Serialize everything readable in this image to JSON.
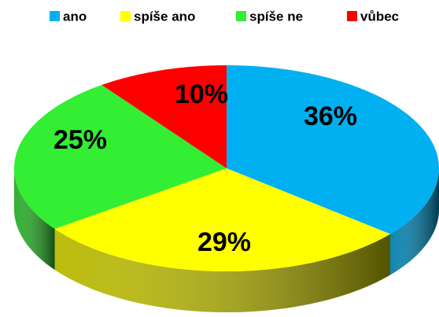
{
  "chart_data": {
    "type": "pie3d",
    "categories": [
      "ano",
      "spíše ano",
      "spíše ne",
      "vůbec"
    ],
    "values": [
      36,
      29,
      25,
      10
    ],
    "value_labels": [
      "36%",
      "29%",
      "25%",
      "10%"
    ],
    "colors": [
      "#00b0f0",
      "#ffff00",
      "#33ee33",
      "#ff0000"
    ],
    "legend": "top"
  }
}
